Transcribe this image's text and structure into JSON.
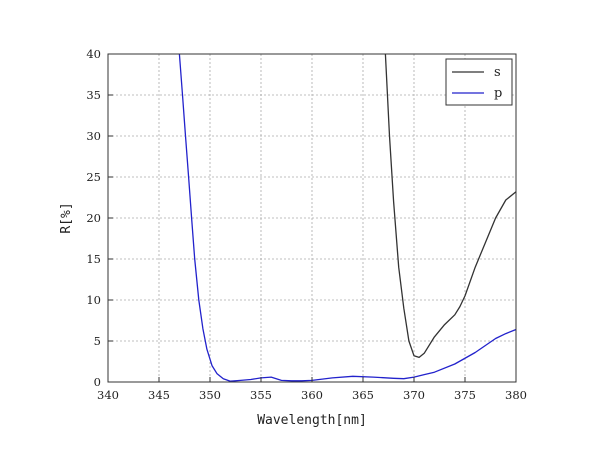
{
  "chart_data": {
    "type": "line",
    "xlabel": "Wavelength[nm]",
    "ylabel": "R[%]",
    "xlim": [
      340,
      380
    ],
    "ylim": [
      0,
      40
    ],
    "xticks": [
      340,
      345,
      350,
      355,
      360,
      365,
      370,
      375,
      380
    ],
    "yticks": [
      0,
      5,
      10,
      15,
      20,
      25,
      30,
      35,
      40
    ],
    "grid": true,
    "legend_position": "top-right",
    "series": [
      {
        "name": "s",
        "color": "#333333",
        "points": [
          [
            367.2,
            40
          ],
          [
            367.6,
            30
          ],
          [
            368.0,
            22
          ],
          [
            368.5,
            14
          ],
          [
            369.0,
            9
          ],
          [
            369.5,
            5
          ],
          [
            370.0,
            3.2
          ],
          [
            370.5,
            3.0
          ],
          [
            371.0,
            3.5
          ],
          [
            372.0,
            5.5
          ],
          [
            373.0,
            7.0
          ],
          [
            374.0,
            8.2
          ],
          [
            374.5,
            9.2
          ],
          [
            375.0,
            10.5
          ],
          [
            376.0,
            14.0
          ],
          [
            377.0,
            17.0
          ],
          [
            378.0,
            20.0
          ],
          [
            379.0,
            22.2
          ],
          [
            380.0,
            23.2
          ]
        ]
      },
      {
        "name": "p",
        "color": "#2222cc",
        "points": [
          [
            347.0,
            40
          ],
          [
            347.3,
            35
          ],
          [
            347.6,
            30
          ],
          [
            347.9,
            25
          ],
          [
            348.2,
            20
          ],
          [
            348.5,
            15
          ],
          [
            348.9,
            10
          ],
          [
            349.3,
            6.5
          ],
          [
            349.7,
            4
          ],
          [
            350.2,
            2
          ],
          [
            350.7,
            1
          ],
          [
            351.3,
            0.4
          ],
          [
            352.0,
            0.1
          ],
          [
            353.0,
            0.2
          ],
          [
            354.0,
            0.3
          ],
          [
            355.0,
            0.5
          ],
          [
            356.0,
            0.6
          ],
          [
            357.0,
            0.2
          ],
          [
            358.0,
            0.15
          ],
          [
            359.0,
            0.15
          ],
          [
            360.0,
            0.2
          ],
          [
            362.0,
            0.5
          ],
          [
            364.0,
            0.7
          ],
          [
            366.0,
            0.6
          ],
          [
            368.0,
            0.45
          ],
          [
            369.0,
            0.4
          ],
          [
            370.0,
            0.6
          ],
          [
            371.0,
            0.9
          ],
          [
            372.0,
            1.2
          ],
          [
            374.0,
            2.2
          ],
          [
            376.0,
            3.6
          ],
          [
            378.0,
            5.3
          ],
          [
            379.0,
            5.9
          ],
          [
            380.0,
            6.4
          ]
        ]
      }
    ]
  }
}
